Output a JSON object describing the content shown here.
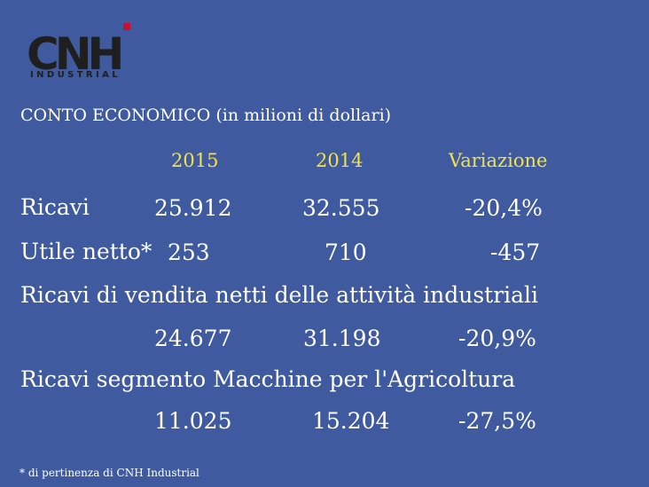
{
  "logo": {
    "text": "CNH",
    "subtext": "INDUSTRIAL"
  },
  "title": "CONTO ECONOMICO  (in milioni di dollari)",
  "columns": [
    "2015",
    "2014",
    "Variazione"
  ],
  "rows": [
    {
      "label": "Ricavi",
      "values": [
        "25.912",
        "32.555",
        "-20,4%"
      ]
    },
    {
      "label": "Utile netto*",
      "values": [
        "253",
        "710",
        "-457"
      ]
    },
    {
      "label": "Ricavi di vendita netti delle attività industriali",
      "values": [
        "24.677",
        "31.198",
        "-20,9%"
      ]
    },
    {
      "label": "Ricavi segmento Macchine per l'Agricoltura",
      "values": [
        "11.025",
        "15.204",
        "-27,5%"
      ]
    }
  ],
  "footnote": "* di pertinenza di CNH Industrial",
  "colors": {
    "background": "#3f5a9e",
    "header": "#f2e24a",
    "text": "#ffffff",
    "logo": "#1f1f1f",
    "logo_accent": "#c8102e"
  }
}
